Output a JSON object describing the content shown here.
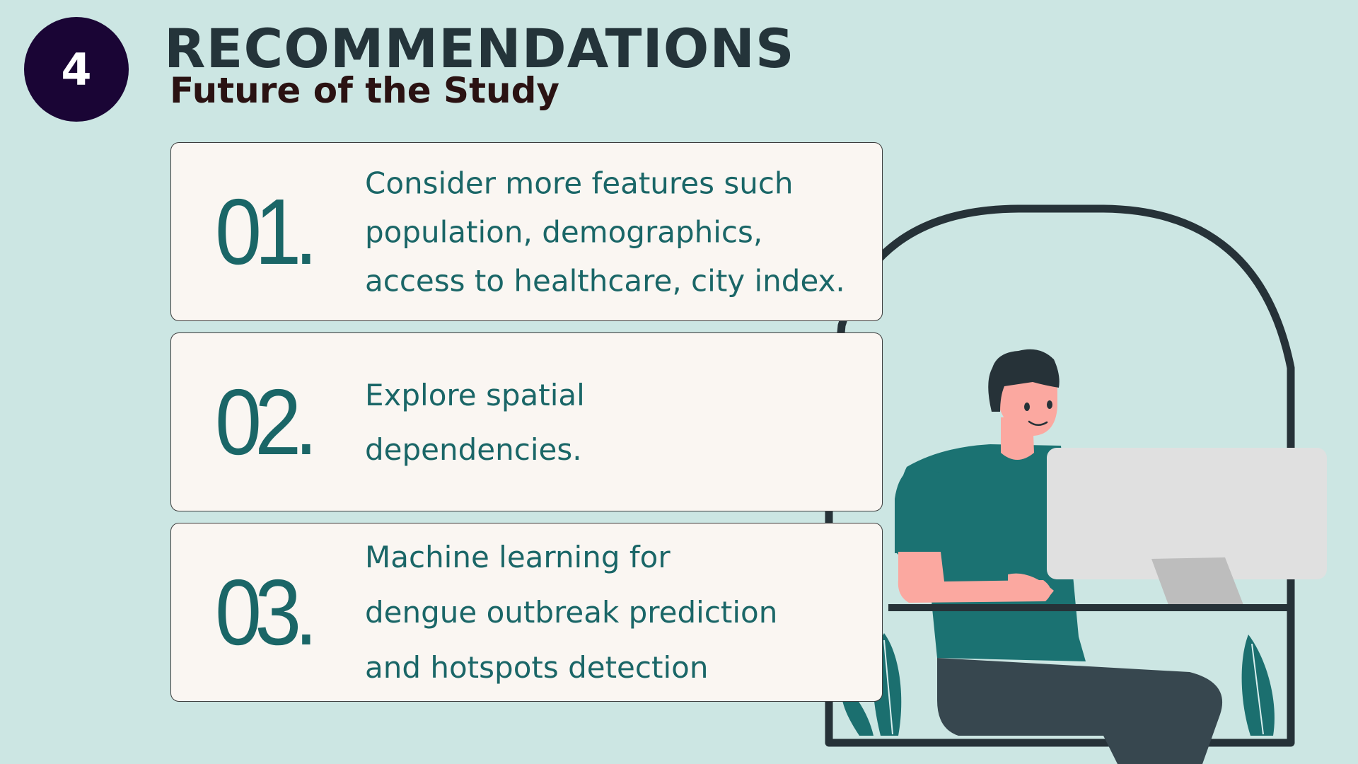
{
  "header": {
    "section_number": "4",
    "title": "RECOMMENDATIONS",
    "subtitle": "Future of the Study"
  },
  "recommendations": [
    {
      "number": "01.",
      "lines": [
        "Consider more features such",
        "population, demographics,",
        "access to healthcare, city index."
      ]
    },
    {
      "number": "02.",
      "lines": [
        "Explore spatial",
        "dependencies."
      ]
    },
    {
      "number": "03.",
      "lines": [
        "Machine learning for",
        "dengue outbreak prediction",
        "and hotspots detection"
      ]
    }
  ],
  "colors": {
    "background": "#cce6e3",
    "badge": "#1a0535",
    "title": "#24343a",
    "accent_teal": "#1a6667",
    "card_fill": "#faf6f2"
  },
  "illustration": {
    "icon": "person-at-computer-illustration"
  }
}
